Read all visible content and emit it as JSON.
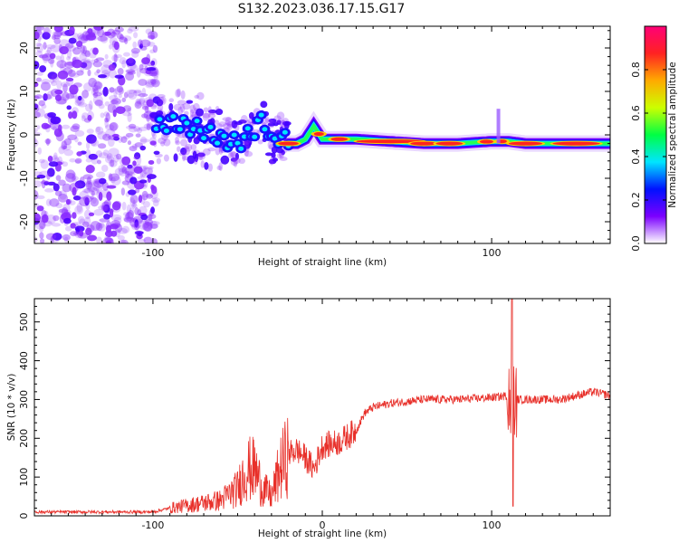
{
  "title": "S132.2023.036.17.15.G17",
  "chart_data": [
    {
      "type": "heatmap",
      "xlabel": "Height of straight line (km)",
      "ylabel": "Frequency (Hz)",
      "xlim": [
        -170,
        170
      ],
      "ylim": [
        -25,
        25
      ],
      "xticks": [
        {
          "value": -100,
          "label": "-100"
        },
        {
          "value": 100,
          "label": "100"
        }
      ],
      "yticks": [
        {
          "value": -20,
          "label": "-20"
        },
        {
          "value": -10,
          "label": "-10"
        },
        {
          "value": 0,
          "label": "0"
        },
        {
          "value": 10,
          "label": "10"
        },
        {
          "value": 20,
          "label": "20"
        }
      ],
      "colorbar": {
        "label": "Normalized spectral amplitude",
        "range": [
          0,
          1
        ],
        "ticks": [
          {
            "value": 0.0,
            "label": "0.0"
          },
          {
            "value": 0.2,
            "label": "0.2"
          },
          {
            "value": 0.4,
            "label": "0.4"
          },
          {
            "value": 0.6,
            "label": "0.6"
          },
          {
            "value": 0.8,
            "label": "0.8"
          }
        ],
        "colormap": "hsv-reversed",
        "stops": [
          "#ffffff",
          "#7b00ff",
          "#0011ff",
          "#00e5ff",
          "#00ff44",
          "#ccff00",
          "#ffaa00",
          "#ff2222",
          "#ff0077"
        ]
      },
      "ridge": {
        "x": [
          -100,
          -90,
          -80,
          -70,
          -60,
          -50,
          -40,
          -35,
          -30,
          -25,
          -20,
          -15,
          -10,
          -5,
          0,
          10,
          20,
          40,
          60,
          80,
          100,
          110,
          120,
          140,
          170
        ],
        "y": [
          1,
          3,
          2,
          1,
          -1,
          -2,
          1,
          4,
          -2,
          0,
          -2,
          -2,
          -1,
          2,
          -1,
          -1,
          -1,
          -1.5,
          -2,
          -2,
          -1.5,
          -1.5,
          -2,
          -2,
          -2
        ]
      }
    },
    {
      "type": "line",
      "xlabel": "Height of straight line (km)",
      "ylabel": "SNR (10 * v/v)",
      "xlim": [
        -170,
        170
      ],
      "ylim": [
        0,
        560
      ],
      "xticks": [
        {
          "value": -100,
          "label": "-100"
        },
        {
          "value": 0,
          "label": "0"
        },
        {
          "value": 100,
          "label": "100"
        }
      ],
      "yticks": [
        {
          "value": 0,
          "label": "0"
        },
        {
          "value": 100,
          "label": "100"
        },
        {
          "value": 200,
          "label": "200"
        },
        {
          "value": 300,
          "label": "300"
        },
        {
          "value": 400,
          "label": "400"
        },
        {
          "value": 500,
          "label": "500"
        }
      ],
      "color": "#e8302a",
      "envelope": {
        "x": [
          -170,
          -100,
          -90,
          -75,
          -60,
          -50,
          -45,
          -40,
          -35,
          -30,
          -25,
          -20,
          -15,
          -10,
          -5,
          0,
          10,
          20,
          25,
          30,
          40,
          50,
          60,
          80,
          100,
          110,
          115,
          120,
          130,
          140,
          150,
          160,
          170
        ],
        "y": [
          10,
          10,
          20,
          30,
          40,
          70,
          120,
          120,
          70,
          50,
          120,
          160,
          170,
          150,
          120,
          180,
          190,
          220,
          265,
          280,
          290,
          295,
          300,
          300,
          305,
          310,
          300,
          300,
          300,
          300,
          310,
          320,
          310
        ]
      },
      "spike": {
        "x": 112,
        "max": 560,
        "min": 25
      }
    }
  ]
}
